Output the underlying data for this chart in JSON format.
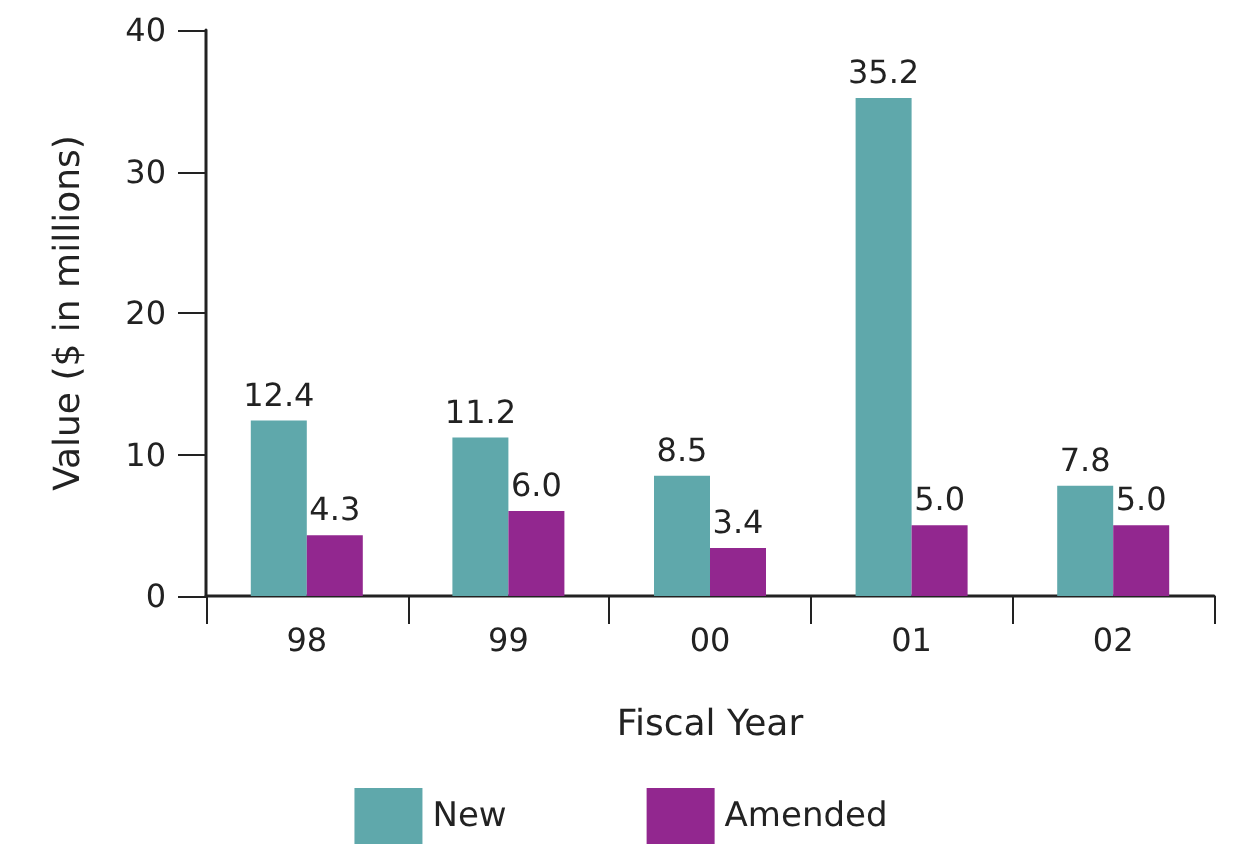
{
  "chart_data": {
    "type": "bar",
    "xlabel": "Fiscal Year",
    "ylabel": "Value ($ in millions)",
    "categories": [
      "98",
      "99",
      "00",
      "01",
      "02"
    ],
    "series": [
      {
        "name": "New",
        "color": "#5fa8ab",
        "values": [
          12.4,
          11.2,
          8.5,
          35.2,
          7.8
        ],
        "value_labels": [
          "12.4",
          "11.2",
          "8.5",
          "35.2",
          "7.8"
        ]
      },
      {
        "name": "Amended",
        "color": "#92278f",
        "values": [
          4.3,
          6,
          3.4,
          5,
          5
        ],
        "value_labels": [
          "4.3",
          "6.0",
          "3.4",
          "5.0",
          "5.0"
        ]
      }
    ],
    "ylim": [
      0,
      40
    ],
    "yticks": [
      0,
      10,
      20,
      30,
      40
    ],
    "legend": "bottom",
    "grid": false
  }
}
